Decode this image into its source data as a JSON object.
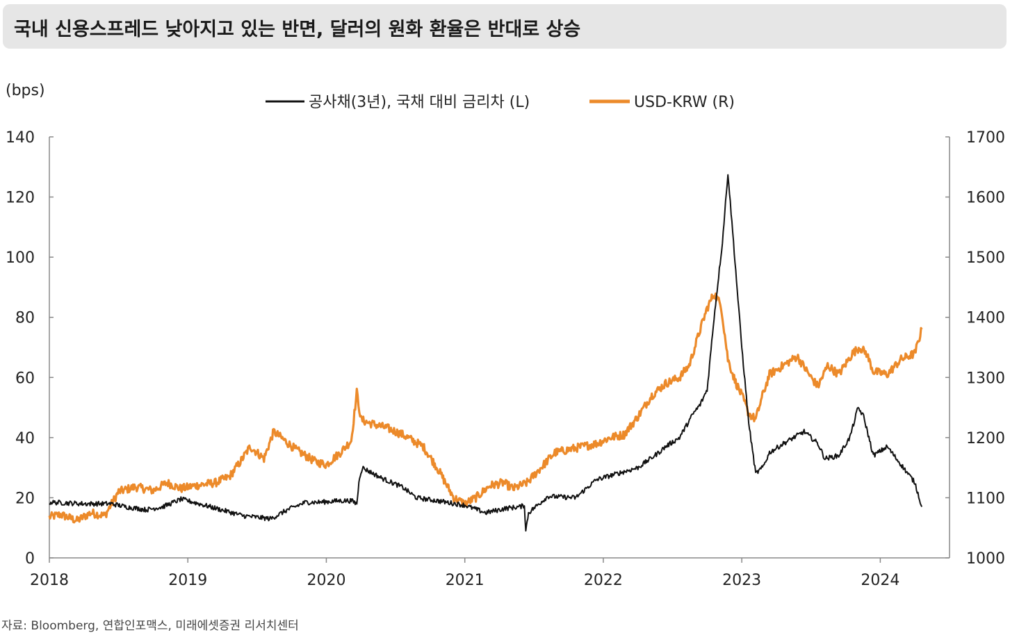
{
  "header": {
    "title": "국내 신용스프레드 낮아지고 있는 반면, 달러의 원화 환율은 반대로 상승"
  },
  "unit_label": "(bps)",
  "source": "자료: Bloomberg, 연합인포맥스, 미래에셋증권 리서치센터",
  "colors": {
    "spread": "#111111",
    "usdkrw": "#ec8a2a",
    "axis": "#888888",
    "title_bg": "#e6e6e6"
  },
  "chart_data": {
    "type": "line",
    "title": "국내 신용스프레드 낮아지고 있는 반면, 달러의 원화 환율은 반대로 상승",
    "xlabel": "",
    "ylabel": "(bps)",
    "x_ticks": [
      "2018",
      "2019",
      "2020",
      "2021",
      "2022",
      "2023",
      "2024"
    ],
    "y_left_ticks": [
      "0",
      "20",
      "40",
      "60",
      "80",
      "100",
      "120",
      "140"
    ],
    "y_right_ticks": [
      "1000",
      "1100",
      "1200",
      "1300",
      "1400",
      "1500",
      "1600",
      "1700"
    ],
    "ylim_left": [
      0,
      140
    ],
    "ylim_right": [
      1000,
      1700
    ],
    "xlim": [
      2018.0,
      2024.5
    ],
    "grid": false,
    "legend_position": "top",
    "series": [
      {
        "name": "공사채(3년), 국채 대비 금리차 (L)",
        "axis": "left",
        "color": "#111111",
        "x": [
          2018.0,
          2018.25,
          2018.45,
          2018.55,
          2018.7,
          2018.82,
          2018.95,
          2019.0,
          2019.2,
          2019.4,
          2019.6,
          2019.72,
          2019.85,
          2019.95,
          2020.1,
          2020.18,
          2020.22,
          2020.24,
          2020.26,
          2020.4,
          2020.55,
          2020.65,
          2020.8,
          2021.0,
          2021.15,
          2021.3,
          2021.4,
          2021.43,
          2021.44,
          2021.46,
          2021.6,
          2021.8,
          2021.95,
          2022.1,
          2022.25,
          2022.4,
          2022.45,
          2022.55,
          2022.65,
          2022.7,
          2022.75,
          2022.8,
          2022.86,
          2022.9,
          2022.94,
          2023.0,
          2023.05,
          2023.1,
          2023.15,
          2023.2,
          2023.3,
          2023.45,
          2023.55,
          2023.6,
          2023.7,
          2023.78,
          2023.84,
          2023.88,
          2023.95,
          2024.05,
          2024.15,
          2024.25,
          2024.3
        ],
        "values": [
          18.5,
          18.0,
          18.0,
          17.0,
          16.0,
          17.0,
          19.5,
          19.0,
          16.5,
          14.0,
          13.0,
          16.0,
          18.5,
          18.5,
          19.0,
          19.0,
          18.0,
          27.0,
          30.0,
          26.5,
          23.5,
          20.0,
          19.0,
          17.5,
          15.0,
          16.5,
          17.0,
          17.5,
          9.0,
          15.0,
          20.5,
          20.0,
          26.0,
          28.0,
          30.0,
          35.0,
          37.0,
          40.0,
          48.0,
          51.0,
          56.0,
          80.0,
          105.0,
          128.0,
          105.0,
          70.0,
          45.0,
          28.0,
          30.0,
          35.0,
          38.0,
          42.0,
          38.0,
          33.0,
          34.0,
          40.0,
          50.0,
          47.0,
          34.0,
          37.0,
          31.0,
          25.0,
          17.0
        ]
      },
      {
        "name": "USD-KRW (R)",
        "axis": "right",
        "color": "#ec8a2a",
        "x": [
          2018.0,
          2018.08,
          2018.2,
          2018.3,
          2018.4,
          2018.5,
          2018.62,
          2018.75,
          2018.85,
          2018.95,
          2019.05,
          2019.2,
          2019.3,
          2019.38,
          2019.45,
          2019.55,
          2019.62,
          2019.7,
          2019.78,
          2019.85,
          2019.92,
          2020.0,
          2020.1,
          2020.18,
          2020.22,
          2020.25,
          2020.3,
          2020.45,
          2020.55,
          2020.7,
          2020.8,
          2020.92,
          2021.0,
          2021.08,
          2021.18,
          2021.28,
          2021.35,
          2021.45,
          2021.55,
          2021.65,
          2021.75,
          2021.85,
          2021.95,
          2022.05,
          2022.15,
          2022.25,
          2022.35,
          2022.45,
          2022.55,
          2022.62,
          2022.7,
          2022.75,
          2022.8,
          2022.85,
          2022.9,
          2022.95,
          2023.0,
          2023.05,
          2023.1,
          2023.15,
          2023.2,
          2023.3,
          2023.4,
          2023.5,
          2023.55,
          2023.62,
          2023.7,
          2023.8,
          2023.85,
          2023.9,
          2023.95,
          2024.05,
          2024.15,
          2024.2,
          2024.25,
          2024.3
        ],
        "values": [
          1068,
          1072,
          1062,
          1075,
          1070,
          1110,
          1118,
          1112,
          1125,
          1115,
          1120,
          1125,
          1135,
          1160,
          1185,
          1165,
          1210,
          1195,
          1180,
          1170,
          1160,
          1155,
          1175,
          1195,
          1275,
          1230,
          1225,
          1215,
          1205,
          1185,
          1150,
          1100,
          1090,
          1100,
          1120,
          1125,
          1115,
          1125,
          1150,
          1175,
          1180,
          1185,
          1190,
          1200,
          1205,
          1235,
          1270,
          1290,
          1300,
          1320,
          1380,
          1415,
          1440,
          1420,
          1330,
          1295,
          1270,
          1240,
          1230,
          1270,
          1305,
          1320,
          1335,
          1300,
          1285,
          1320,
          1305,
          1340,
          1350,
          1340,
          1310,
          1305,
          1330,
          1335,
          1340,
          1380
        ]
      }
    ]
  }
}
